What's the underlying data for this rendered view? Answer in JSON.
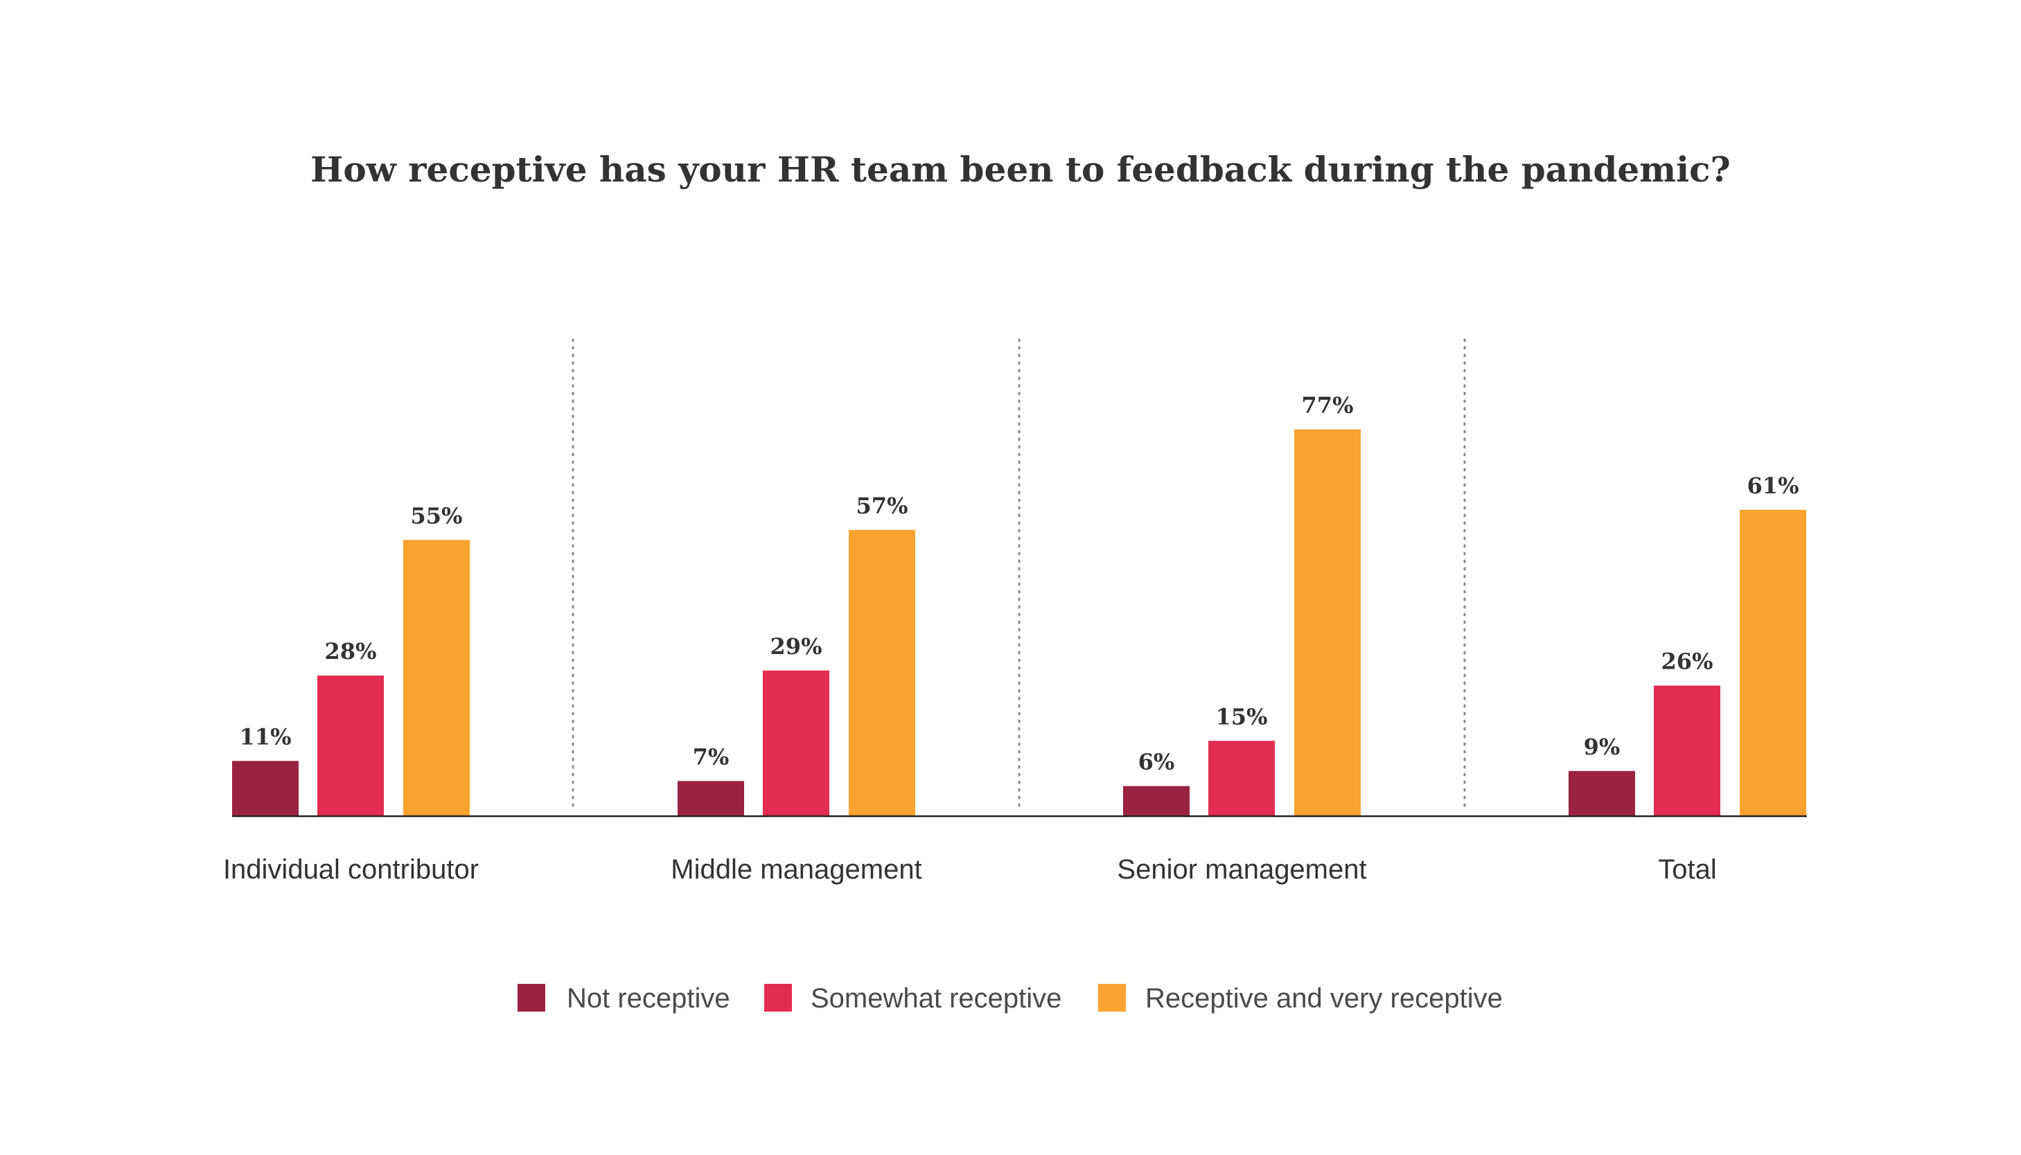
{
  "chart_data": {
    "type": "bar",
    "title": "How receptive has your HR team been to feedback during the pandemic?",
    "categories": [
      "Individual contributor",
      "Middle management",
      "Senior management",
      "Total"
    ],
    "series": [
      {
        "name": "Not receptive",
        "color": "#9b2243",
        "values": [
          11,
          7,
          6,
          9
        ],
        "labels": [
          "11%",
          "7%",
          "6%",
          "9%"
        ]
      },
      {
        "name": "Somewhat receptive",
        "color": "#e32c51",
        "values": [
          28,
          29,
          15,
          26
        ],
        "labels": [
          "28%",
          "29%",
          "15%",
          "26%"
        ]
      },
      {
        "name": "Receptive and very receptive",
        "color": "#fca22f",
        "values": [
          55,
          57,
          77,
          61
        ],
        "labels": [
          "55%",
          "57%",
          "77%",
          "61%"
        ]
      }
    ],
    "ylim": [
      0,
      100
    ],
    "grid": false,
    "separators": "dotted-vertical",
    "legend_position": "bottom"
  }
}
